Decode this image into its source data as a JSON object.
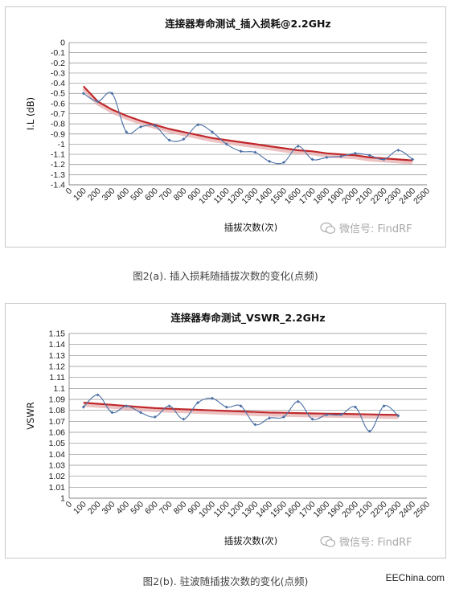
{
  "chart_data": [
    {
      "type": "line",
      "title": "连接器寿命测试_插入损耗@2.2GHz",
      "xlabel": "插拔次数(次)",
      "ylabel": "I.L (dB)",
      "xlim": [
        0,
        2500
      ],
      "ylim": [
        -1.4,
        0
      ],
      "yticks": [
        "0",
        "-0.1",
        "-0.2",
        "-0.3",
        "-0.4",
        "-0.5",
        "-0.6",
        "-0.7",
        "-0.8",
        "-0.9",
        "-1",
        "-1.1",
        "-1.2",
        "-1.3",
        "-1.4"
      ],
      "xticks": [
        "0",
        "100",
        "200",
        "300",
        "400",
        "500",
        "600",
        "700",
        "800",
        "900",
        "1000",
        "1100",
        "1200",
        "1300",
        "1400",
        "1500",
        "1600",
        "1700",
        "1800",
        "1900",
        "2000",
        "2100",
        "2200",
        "2300",
        "2400",
        "2500"
      ],
      "grid": true,
      "series": [
        {
          "kind": "measured",
          "color": "#4a6fa5",
          "x": [
            100,
            200,
            300,
            400,
            500,
            600,
            700,
            800,
            900,
            1000,
            1100,
            1200,
            1300,
            1400,
            1500,
            1600,
            1700,
            1800,
            1900,
            2000,
            2100,
            2200,
            2300,
            2400
          ],
          "y": [
            -0.5,
            -0.58,
            -0.5,
            -0.88,
            -0.83,
            -0.82,
            -0.96,
            -0.95,
            -0.81,
            -0.88,
            -1.0,
            -1.07,
            -1.08,
            -1.17,
            -1.18,
            -1.02,
            -1.15,
            -1.13,
            -1.12,
            -1.09,
            -1.11,
            -1.15,
            -1.06,
            -1.15
          ]
        },
        {
          "kind": "trend",
          "color": "#c0282a",
          "x": [
            100,
            200,
            300,
            400,
            500,
            600,
            700,
            800,
            900,
            1000,
            1100,
            1200,
            1300,
            1400,
            1500,
            1600,
            1700,
            1800,
            1900,
            2000,
            2100,
            2200,
            2300,
            2400
          ],
          "y": [
            -0.43,
            -0.58,
            -0.66,
            -0.72,
            -0.77,
            -0.81,
            -0.85,
            -0.88,
            -0.91,
            -0.94,
            -0.96,
            -0.98,
            -1.0,
            -1.02,
            -1.04,
            -1.06,
            -1.07,
            -1.09,
            -1.1,
            -1.11,
            -1.13,
            -1.14,
            -1.15,
            -1.16
          ]
        }
      ]
    },
    {
      "type": "line",
      "title": "连接器寿命测试_VSWR_2.2GHz",
      "xlabel": "插拔次数(次)",
      "ylabel": "VSWR",
      "xlim": [
        0,
        2500
      ],
      "ylim": [
        1,
        1.15
      ],
      "yticks": [
        "1.15",
        "1.14",
        "1.13",
        "1.12",
        "1.11",
        "1.1",
        "1.09",
        "1.08",
        "1.07",
        "1.06",
        "1.05",
        "1.04",
        "1.03",
        "1.02",
        "1.01",
        "1"
      ],
      "xticks": [
        "0",
        "100",
        "200",
        "300",
        "400",
        "500",
        "600",
        "700",
        "800",
        "900",
        "1000",
        "1100",
        "1200",
        "1300",
        "1400",
        "1500",
        "1600",
        "1700",
        "1800",
        "1900",
        "2000",
        "2100",
        "2200",
        "2300",
        "2400",
        "2500"
      ],
      "grid": true,
      "series": [
        {
          "kind": "measured",
          "color": "#4a6fa5",
          "x": [
            100,
            200,
            300,
            400,
            500,
            600,
            700,
            800,
            900,
            1000,
            1100,
            1200,
            1300,
            1400,
            1500,
            1600,
            1700,
            1800,
            1900,
            2000,
            2100,
            2200,
            2300
          ],
          "y": [
            1.083,
            1.094,
            1.078,
            1.084,
            1.078,
            1.074,
            1.084,
            1.072,
            1.087,
            1.091,
            1.083,
            1.084,
            1.067,
            1.073,
            1.074,
            1.088,
            1.072,
            1.076,
            1.076,
            1.083,
            1.061,
            1.084,
            1.075
          ]
        },
        {
          "kind": "trend",
          "color": "#c0282a",
          "x": [
            100,
            200,
            300,
            400,
            500,
            600,
            700,
            800,
            900,
            1000,
            1100,
            1200,
            1300,
            1400,
            1500,
            1600,
            1700,
            1800,
            1900,
            2000,
            2100,
            2200,
            2300
          ],
          "y": [
            1.087,
            1.086,
            1.085,
            1.084,
            1.083,
            1.082,
            1.0815,
            1.081,
            1.0805,
            1.08,
            1.0795,
            1.079,
            1.0785,
            1.078,
            1.0778,
            1.0775,
            1.0772,
            1.077,
            1.0768,
            1.0765,
            1.0763,
            1.076,
            1.0758
          ]
        }
      ]
    }
  ],
  "captions": {
    "fig_a": "图2(a). 插入损耗随插拔次数的变化(点频)",
    "fig_b": "图2(b). 驻波随插拔次数的变化(点频)"
  },
  "watermark": {
    "text_a": "微信号: FindRF",
    "text_b": "微信号: FindRF",
    "icon": "wechat-icon"
  },
  "footer": {
    "source": "EEChina.com"
  }
}
